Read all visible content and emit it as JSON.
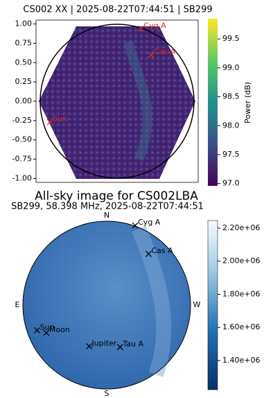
{
  "chart_data": [
    {
      "type": "skymap",
      "title": "CS002 XX | 2025-08-22T07:44:51 | SB299",
      "xlim": [
        -1.05,
        1.05
      ],
      "ylim": [
        -1.05,
        1.05
      ],
      "yticks": [
        {
          "value": 1,
          "label": "1.00"
        },
        0.75,
        {
          "value": 0.5,
          "label": "0.50"
        },
        0.25,
        {
          "value": 0,
          "label": "0.00"
        },
        -0.25,
        {
          "value": -0.5,
          "label": "-0.50"
        },
        -0.75,
        {
          "value": -1,
          "label": "-1.00"
        }
      ],
      "colorbar": {
        "label": "Power (dB)",
        "colormap": "viridis",
        "lim": [
          96.96,
          99.85
        ],
        "ticks": [
          {
            "value": 97,
            "label": "97.0"
          },
          97.5,
          {
            "value": 98,
            "label": "98.0"
          },
          98.5,
          {
            "value": 99,
            "label": "99.0"
          },
          99.5
        ]
      },
      "marker_color": "#d62728",
      "sources": [
        {
          "name": "Cyg A",
          "x": 0.31,
          "y": 0.94
        },
        {
          "name": "Cas A",
          "x": 0.44,
          "y": 0.6
        },
        {
          "name": "Sun",
          "x": -0.87,
          "y": -0.27
        }
      ]
    },
    {
      "type": "skymap",
      "title": "All-sky image for CS002LBA",
      "subtitle": "SB299, 58.398 MHz, 2025-08-22T07:44:51",
      "compass": [
        "N",
        "E",
        "S",
        "W"
      ],
      "colorbar": {
        "colormap": "Blues_r",
        "lim": [
          1224000,
          2246000
        ],
        "ticks": [
          {
            "value": 1400000,
            "label": "1.40e+06"
          },
          {
            "value": 1600000,
            "label": "1.60e+06"
          },
          {
            "value": 1800000,
            "label": "1.80e+06"
          },
          {
            "value": 2000000,
            "label": "2.00e+06"
          },
          {
            "value": 2200000,
            "label": "2.20e+06"
          }
        ]
      },
      "marker_color": "#000000",
      "sources": [
        {
          "name": "Cyg A",
          "x": 0.34,
          "y": 0.95
        },
        {
          "name": "Cas A",
          "x": 0.5,
          "y": 0.61
        },
        {
          "name": "Sun",
          "x": -0.83,
          "y": -0.3
        },
        {
          "name": "Moon",
          "x": -0.72,
          "y": -0.33
        },
        {
          "name": "Jupiter",
          "x": -0.21,
          "y": -0.49
        },
        {
          "name": "Tau A",
          "x": 0.16,
          "y": -0.5
        }
      ]
    }
  ]
}
